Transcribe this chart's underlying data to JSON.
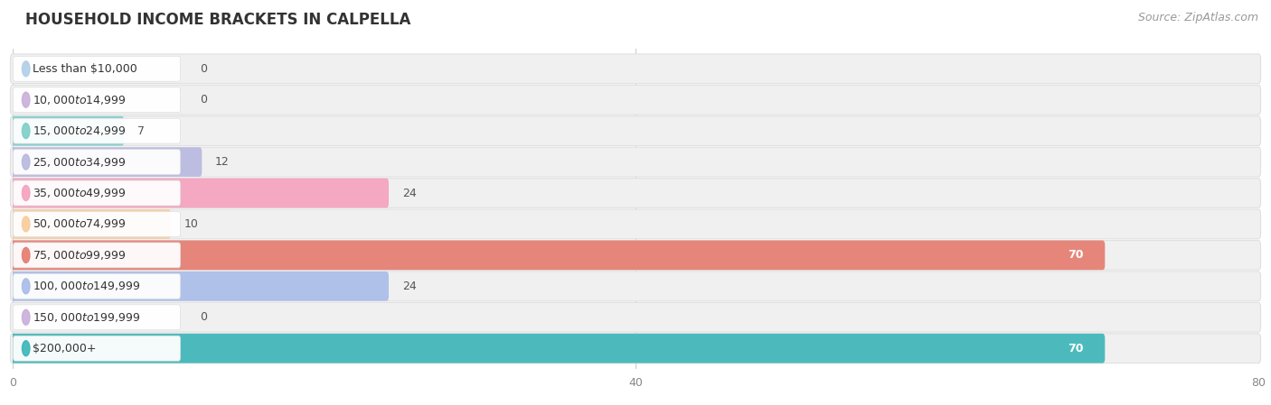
{
  "title": "HOUSEHOLD INCOME BRACKETS IN CALPELLA",
  "source": "Source: ZipAtlas.com",
  "categories": [
    "Less than $10,000",
    "$10,000 to $14,999",
    "$15,000 to $24,999",
    "$25,000 to $34,999",
    "$35,000 to $49,999",
    "$50,000 to $74,999",
    "$75,000 to $99,999",
    "$100,000 to $149,999",
    "$150,000 to $199,999",
    "$200,000+"
  ],
  "values": [
    0,
    0,
    7,
    12,
    24,
    10,
    70,
    24,
    0,
    70
  ],
  "bar_colors": [
    "#b0cfe8",
    "#c9aed9",
    "#7ecec8",
    "#b8b8e0",
    "#f5a0bc",
    "#f9cb9c",
    "#e57b6e",
    "#a8bce8",
    "#c9aed9",
    "#3ab5b8"
  ],
  "xlim": [
    0,
    80
  ],
  "xticks": [
    0,
    40,
    80
  ],
  "background_color": "#ffffff",
  "bar_bg_color": "#f0f0f0",
  "bar_bg_edge_color": "#e0e0e0",
  "title_fontsize": 12,
  "source_fontsize": 9,
  "label_fontsize": 9,
  "value_fontsize": 9
}
